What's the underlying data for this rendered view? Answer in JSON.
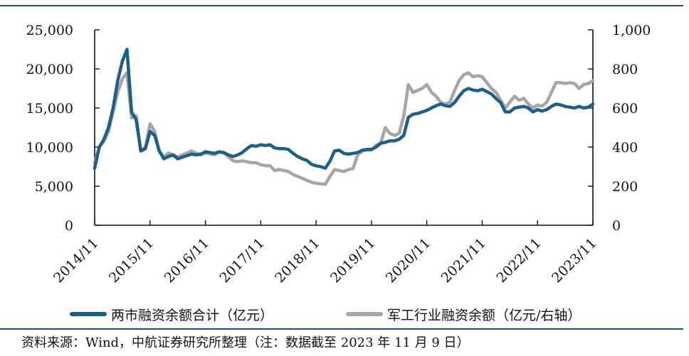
{
  "chart_data": {
    "type": "line",
    "title": "",
    "xlabel": "",
    "x_ticks": [
      "2014/11",
      "2015/11",
      "2016/11",
      "2017/11",
      "2018/11",
      "2019/11",
      "2020/11",
      "2021/11",
      "2022/11",
      "2023/11"
    ],
    "y_left": {
      "ylim": [
        0,
        25000
      ],
      "ticks": [
        "0",
        "5,000",
        "10,000",
        "15,000",
        "20,000",
        "25,000"
      ],
      "tick_values": [
        0,
        5000,
        10000,
        15000,
        20000,
        25000
      ]
    },
    "y_right": {
      "ylim": [
        0,
        1000
      ],
      "ticks": [
        "0",
        "200",
        "400",
        "600",
        "800",
        "1,000"
      ],
      "tick_values": [
        0,
        200,
        400,
        600,
        800,
        1000
      ]
    },
    "grid": false,
    "legend_position": "bottom",
    "series": [
      {
        "name": "两市融资余额合计（亿元）",
        "axis": "left",
        "color": "#1f5f86",
        "points": [
          [
            "2014-11",
            7300
          ],
          [
            "2014-12",
            10000
          ],
          [
            "2015-01",
            11000
          ],
          [
            "2015-02",
            12500
          ],
          [
            "2015-03",
            15000
          ],
          [
            "2015-04",
            18500
          ],
          [
            "2015-05",
            21000
          ],
          [
            "2015-06",
            22500
          ],
          [
            "2015-07",
            14500
          ],
          [
            "2015-08",
            13500
          ],
          [
            "2015-09",
            9500
          ],
          [
            "2015-10",
            9800
          ],
          [
            "2015-11",
            12000
          ],
          [
            "2015-12",
            11500
          ],
          [
            "2016-01",
            9500
          ],
          [
            "2016-02",
            8500
          ],
          [
            "2016-03",
            8800
          ],
          [
            "2016-04",
            9000
          ],
          [
            "2016-05",
            8500
          ],
          [
            "2016-06",
            8700
          ],
          [
            "2016-07",
            8900
          ],
          [
            "2016-08",
            9100
          ],
          [
            "2016-09",
            9000
          ],
          [
            "2016-10",
            9100
          ],
          [
            "2016-11",
            9400
          ],
          [
            "2016-12",
            9300
          ],
          [
            "2017-01",
            9200
          ],
          [
            "2017-02",
            9400
          ],
          [
            "2017-03",
            9300
          ],
          [
            "2017-04",
            9000
          ],
          [
            "2017-05",
            8800
          ],
          [
            "2017-06",
            9000
          ],
          [
            "2017-07",
            9300
          ],
          [
            "2017-08",
            9800
          ],
          [
            "2017-09",
            10200
          ],
          [
            "2017-10",
            10100
          ],
          [
            "2017-11",
            10300
          ],
          [
            "2017-12",
            10200
          ],
          [
            "2018-01",
            10300
          ],
          [
            "2018-02",
            9900
          ],
          [
            "2018-03",
            9800
          ],
          [
            "2018-04",
            9800
          ],
          [
            "2018-05",
            9700
          ],
          [
            "2018-06",
            9200
          ],
          [
            "2018-07",
            8800
          ],
          [
            "2018-08",
            8500
          ],
          [
            "2018-09",
            8300
          ],
          [
            "2018-10",
            7800
          ],
          [
            "2018-11",
            7600
          ],
          [
            "2018-12",
            7500
          ],
          [
            "2019-01",
            7300
          ],
          [
            "2019-02",
            8200
          ],
          [
            "2019-03",
            9500
          ],
          [
            "2019-04",
            9600
          ],
          [
            "2019-05",
            9200
          ],
          [
            "2019-06",
            9100
          ],
          [
            "2019-07",
            9200
          ],
          [
            "2019-08",
            9300
          ],
          [
            "2019-09",
            9600
          ],
          [
            "2019-10",
            9700
          ],
          [
            "2019-11",
            9700
          ],
          [
            "2019-12",
            10000
          ],
          [
            "2020-01",
            10500
          ],
          [
            "2020-02",
            10600
          ],
          [
            "2020-03",
            10800
          ],
          [
            "2020-04",
            10800
          ],
          [
            "2020-05",
            11000
          ],
          [
            "2020-06",
            11500
          ],
          [
            "2020-07",
            13800
          ],
          [
            "2020-08",
            14200
          ],
          [
            "2020-09",
            14300
          ],
          [
            "2020-10",
            14500
          ],
          [
            "2020-11",
            14700
          ],
          [
            "2020-12",
            15000
          ],
          [
            "2021-01",
            15300
          ],
          [
            "2021-02",
            15500
          ],
          [
            "2021-03",
            15300
          ],
          [
            "2021-04",
            15200
          ],
          [
            "2021-05",
            15700
          ],
          [
            "2021-06",
            16500
          ],
          [
            "2021-07",
            17200
          ],
          [
            "2021-08",
            17500
          ],
          [
            "2021-09",
            17300
          ],
          [
            "2021-10",
            17200
          ],
          [
            "2021-11",
            17400
          ],
          [
            "2021-12",
            17100
          ],
          [
            "2022-01",
            16800
          ],
          [
            "2022-02",
            16200
          ],
          [
            "2022-03",
            15700
          ],
          [
            "2022-04",
            14500
          ],
          [
            "2022-05",
            14500
          ],
          [
            "2022-06",
            15000
          ],
          [
            "2022-07",
            15100
          ],
          [
            "2022-08",
            15200
          ],
          [
            "2022-09",
            15000
          ],
          [
            "2022-10",
            14500
          ],
          [
            "2022-11",
            14800
          ],
          [
            "2022-12",
            14600
          ],
          [
            "2023-01",
            14800
          ],
          [
            "2023-02",
            15200
          ],
          [
            "2023-03",
            15500
          ],
          [
            "2023-04",
            15400
          ],
          [
            "2023-05",
            15200
          ],
          [
            "2023-06",
            15100
          ],
          [
            "2023-07",
            15000
          ],
          [
            "2023-08",
            15200
          ],
          [
            "2023-09",
            15000
          ],
          [
            "2023-10",
            15100
          ],
          [
            "2023-11",
            15500
          ]
        ]
      },
      {
        "name": "军工行业融资余额（亿元/右轴）",
        "axis": "right",
        "color": "#a6a6a6",
        "points": [
          [
            "2014-11",
            320
          ],
          [
            "2014-12",
            400
          ],
          [
            "2015-01",
            430
          ],
          [
            "2015-02",
            480
          ],
          [
            "2015-03",
            580
          ],
          [
            "2015-04",
            680
          ],
          [
            "2015-05",
            750
          ],
          [
            "2015-06",
            780
          ],
          [
            "2015-07",
            550
          ],
          [
            "2015-08",
            560
          ],
          [
            "2015-09",
            380
          ],
          [
            "2015-10",
            400
          ],
          [
            "2015-11",
            520
          ],
          [
            "2015-12",
            480
          ],
          [
            "2016-01",
            380
          ],
          [
            "2016-02",
            350
          ],
          [
            "2016-03",
            370
          ],
          [
            "2016-04",
            360
          ],
          [
            "2016-05",
            350
          ],
          [
            "2016-06",
            360
          ],
          [
            "2016-07",
            370
          ],
          [
            "2016-08",
            380
          ],
          [
            "2016-09",
            370
          ],
          [
            "2016-10",
            360
          ],
          [
            "2016-11",
            370
          ],
          [
            "2016-12",
            365
          ],
          [
            "2017-01",
            360
          ],
          [
            "2017-02",
            375
          ],
          [
            "2017-03",
            370
          ],
          [
            "2017-04",
            350
          ],
          [
            "2017-05",
            330
          ],
          [
            "2017-06",
            325
          ],
          [
            "2017-07",
            330
          ],
          [
            "2017-08",
            325
          ],
          [
            "2017-09",
            320
          ],
          [
            "2017-10",
            320
          ],
          [
            "2017-11",
            310
          ],
          [
            "2017-12",
            305
          ],
          [
            "2018-01",
            305
          ],
          [
            "2018-02",
            280
          ],
          [
            "2018-03",
            285
          ],
          [
            "2018-04",
            280
          ],
          [
            "2018-05",
            275
          ],
          [
            "2018-06",
            260
          ],
          [
            "2018-07",
            250
          ],
          [
            "2018-08",
            240
          ],
          [
            "2018-09",
            230
          ],
          [
            "2018-10",
            220
          ],
          [
            "2018-11",
            215
          ],
          [
            "2018-12",
            212
          ],
          [
            "2019-01",
            210
          ],
          [
            "2019-02",
            250
          ],
          [
            "2019-03",
            285
          ],
          [
            "2019-04",
            280
          ],
          [
            "2019-05",
            275
          ],
          [
            "2019-06",
            285
          ],
          [
            "2019-07",
            290
          ],
          [
            "2019-08",
            360
          ],
          [
            "2019-09",
            380
          ],
          [
            "2019-10",
            385
          ],
          [
            "2019-11",
            385
          ],
          [
            "2019-12",
            410
          ],
          [
            "2020-01",
            420
          ],
          [
            "2020-02",
            500
          ],
          [
            "2020-03",
            470
          ],
          [
            "2020-04",
            460
          ],
          [
            "2020-05",
            470
          ],
          [
            "2020-06",
            560
          ],
          [
            "2020-07",
            720
          ],
          [
            "2020-08",
            680
          ],
          [
            "2020-09",
            690
          ],
          [
            "2020-10",
            700
          ],
          [
            "2020-11",
            720
          ],
          [
            "2020-12",
            680
          ],
          [
            "2021-01",
            660
          ],
          [
            "2021-02",
            630
          ],
          [
            "2021-03",
            620
          ],
          [
            "2021-04",
            630
          ],
          [
            "2021-05",
            690
          ],
          [
            "2021-06",
            740
          ],
          [
            "2021-07",
            770
          ],
          [
            "2021-08",
            780
          ],
          [
            "2021-09",
            760
          ],
          [
            "2021-10",
            765
          ],
          [
            "2021-11",
            760
          ],
          [
            "2021-12",
            730
          ],
          [
            "2022-01",
            700
          ],
          [
            "2022-02",
            680
          ],
          [
            "2022-03",
            640
          ],
          [
            "2022-04",
            600
          ],
          [
            "2022-05",
            630
          ],
          [
            "2022-06",
            660
          ],
          [
            "2022-07",
            640
          ],
          [
            "2022-08",
            650
          ],
          [
            "2022-09",
            620
          ],
          [
            "2022-10",
            600
          ],
          [
            "2022-11",
            615
          ],
          [
            "2022-12",
            610
          ],
          [
            "2023-01",
            630
          ],
          [
            "2023-02",
            680
          ],
          [
            "2023-03",
            730
          ],
          [
            "2023-04",
            730
          ],
          [
            "2023-05",
            725
          ],
          [
            "2023-06",
            730
          ],
          [
            "2023-07",
            725
          ],
          [
            "2023-08",
            700
          ],
          [
            "2023-09",
            720
          ],
          [
            "2023-10",
            725
          ],
          [
            "2023-11",
            740
          ]
        ]
      }
    ]
  },
  "source_note": "资料来源：Wind，中航证券研究所整理（注：数据截至 2023 年 11 月 9 日）"
}
